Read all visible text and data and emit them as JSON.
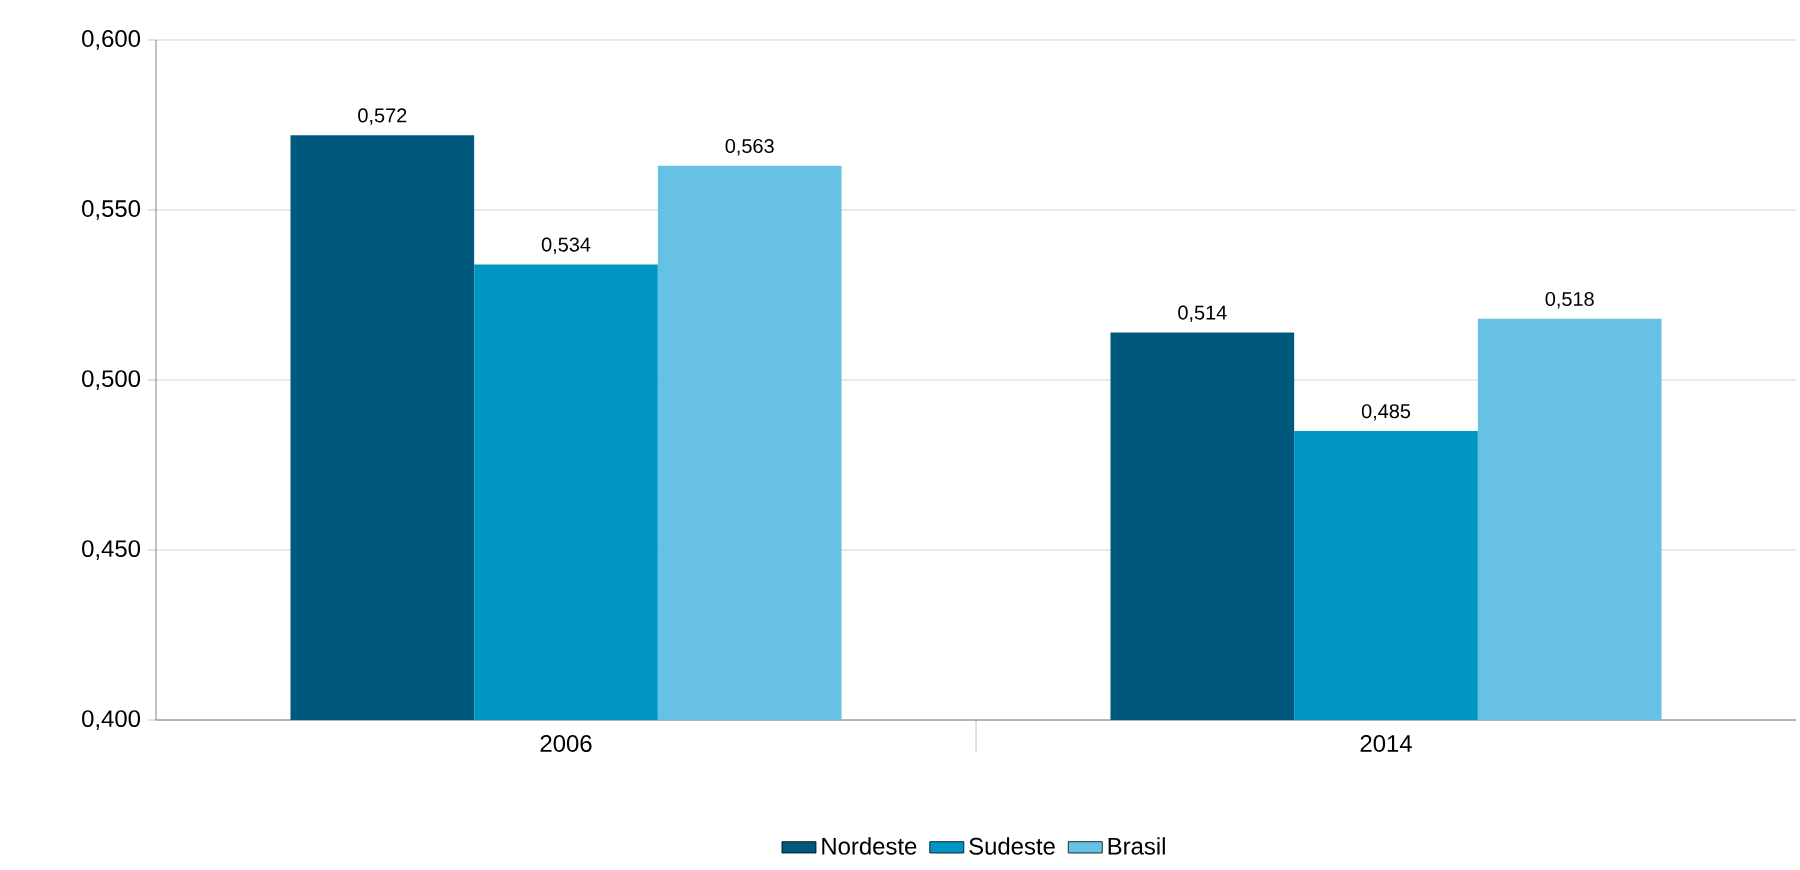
{
  "chart_data": {
    "type": "bar",
    "categories": [
      "2006",
      "2014"
    ],
    "series": [
      {
        "name": "Nordeste",
        "color": "#00587c",
        "values": [
          0.572,
          0.514
        ],
        "value_labels": [
          "0,572",
          "0,514"
        ]
      },
      {
        "name": "Sudeste",
        "color": "#0096c4",
        "values": [
          0.534,
          0.485
        ],
        "value_labels": [
          "0,534",
          "0,485"
        ]
      },
      {
        "name": "Brasil",
        "color": "#66c1e5",
        "values": [
          0.563,
          0.518
        ],
        "value_labels": [
          "0,563",
          "0,518"
        ]
      }
    ],
    "ylim": [
      0.4,
      0.6
    ],
    "yticks": [
      {
        "value": 0.4,
        "label": "0,400"
      },
      {
        "value": 0.45,
        "label": "0,450"
      },
      {
        "value": 0.5,
        "label": "0,500"
      },
      {
        "value": 0.55,
        "label": "0,550"
      },
      {
        "value": 0.6,
        "label": "0,600"
      }
    ],
    "grid": "y",
    "legend": "bottom"
  }
}
